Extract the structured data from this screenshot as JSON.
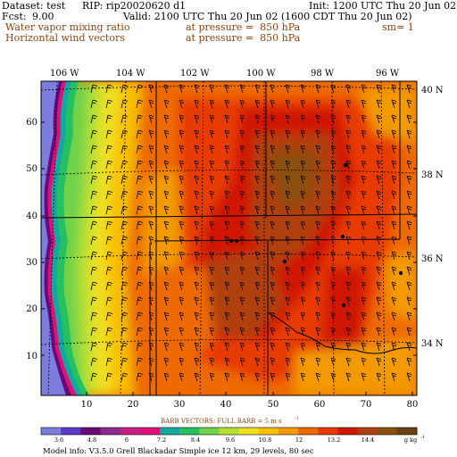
{
  "header": {
    "dataset": "Dataset: test",
    "rip": "RIP: rip20020620 d1",
    "init": "Init: 1200 UTC Thu 20 Jun 02",
    "fcst_label": "Fcst:",
    "fcst_value": "9.00",
    "valid": "Valid: 2100 UTC Thu 20 Jun 02 (1600 CDT Thu 20 Jun 02)",
    "field1_name": "Water vapor mixing ratio",
    "field1_level": "at pressure =  850 hPa",
    "field1_extra": "sm= 1",
    "field2_name": "Horizontal wind vectors",
    "field2_level": "at pressure =  850 hPa"
  },
  "map": {
    "lon_labels": [
      "106 W",
      "104 W",
      "102 W",
      "100 W",
      "98 W",
      "96 W"
    ],
    "lat_labels": [
      "40 N",
      "38 N",
      "36 N",
      "34 N"
    ],
    "y_ticks": [
      "10",
      "20",
      "30",
      "40",
      "50",
      "60"
    ],
    "x_ticks": [
      "10",
      "20",
      "30",
      "40",
      "50",
      "60",
      "70",
      "80"
    ],
    "barb_note": "BARB VECTORS:  FULL BARB = 5 m s",
    "barb_note_sup": "-1",
    "colorbar_labels": [
      "3.6",
      "4.8",
      "6",
      "7.2",
      "8.4",
      "9.6",
      "10.8",
      "12",
      "13.2",
      "14.4"
    ],
    "colorbar_unit": "g kg",
    "colorbar_unit_sup": "-1",
    "footer": "Model info: V3.5.0   Grell     Blackadar   Simple ice    12 km,  29 levels,   80 sec",
    "colors": [
      "#7d7de0",
      "#5a3cc8",
      "#6a0a7a",
      "#8e2a8e",
      "#c82080",
      "#e0107a",
      "#12a8a0",
      "#25c060",
      "#6fd24a",
      "#b8e030",
      "#f0e020",
      "#f8c000",
      "#f29a00",
      "#ee6a00",
      "#e83a00",
      "#d01800",
      "#b04010",
      "#8a5010",
      "#6b4015"
    ]
  }
}
